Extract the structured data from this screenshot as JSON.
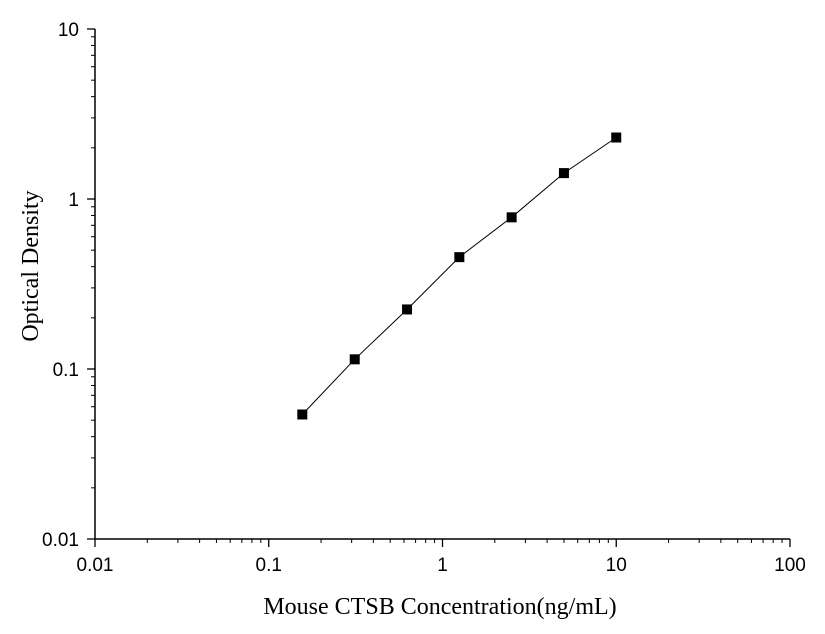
{
  "chart_data": {
    "type": "scatter",
    "title": "",
    "xlabel": "Mouse CTSB Concentration(ng/mL)",
    "ylabel": "Optical Density",
    "xscale": "log",
    "yscale": "log",
    "xlim": [
      0.01,
      100
    ],
    "ylim": [
      0.01,
      10
    ],
    "xticks": [
      "0.01",
      "0.1",
      "1",
      "10",
      "100"
    ],
    "yticks": [
      "0.01",
      "0.1",
      "1",
      "10"
    ],
    "grid": false,
    "legend": "none",
    "series": [
      {
        "marker": "square",
        "color": "#000000",
        "connected": true,
        "x": [
          0.156,
          0.3125,
          0.625,
          1.25,
          2.5,
          5,
          10
        ],
        "y": [
          0.054,
          0.114,
          0.224,
          0.455,
          0.78,
          1.42,
          2.3
        ]
      }
    ]
  }
}
